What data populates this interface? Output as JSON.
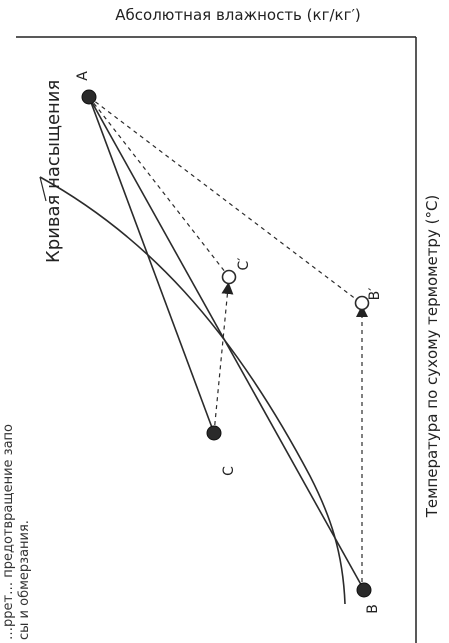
{
  "title": "Абсолютная влажность (кг/кг′)",
  "right_axis_label": "Температура по сухому термометру (°C)",
  "curve_label": "Кривая насыщения",
  "note_lines": [
    "…ррет… предотвращение запо",
    "сы и обмерзания."
  ],
  "points": {
    "A": "A",
    "B": "B",
    "B_prime": "B′",
    "C": "C",
    "C_prime": "C′"
  }
}
